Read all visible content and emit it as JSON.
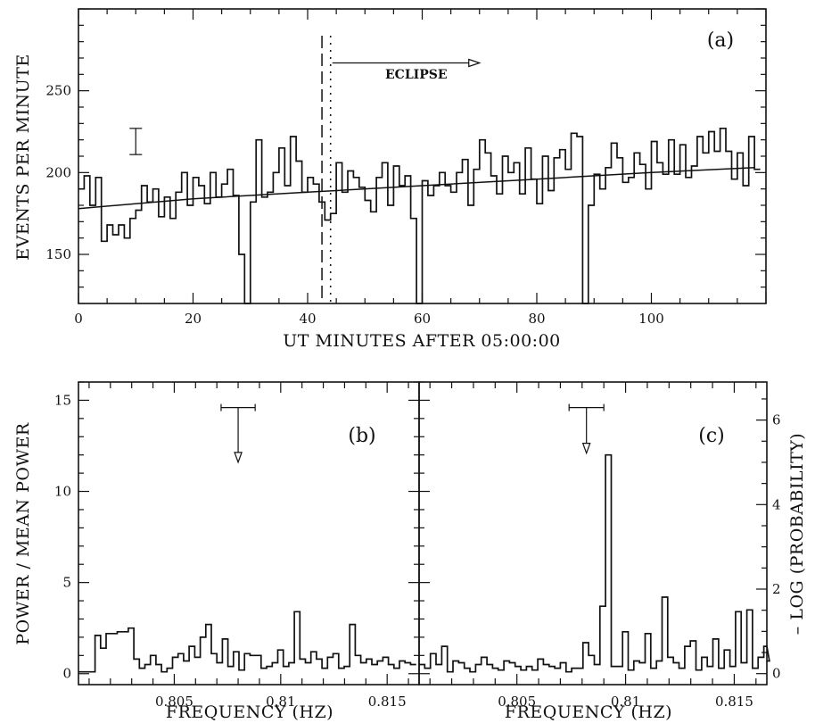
{
  "chart_data": [
    {
      "panel": "(a)",
      "type": "line",
      "xlabel": "UT MINUTES AFTER 05:00:00",
      "ylabel": "EVENTS PER MINUTE",
      "xlim": [
        0,
        120
      ],
      "ylim": [
        120,
        300
      ],
      "xticks": [
        0,
        20,
        40,
        60,
        80,
        100
      ],
      "yticks": [
        150,
        200,
        250
      ],
      "eclipse_label": "ECLIPSE",
      "eclipse_lines_x": [
        42.5,
        44.0
      ],
      "error_bar": {
        "x": 10,
        "y": [
          211,
          227
        ]
      },
      "series": [
        {
          "values": [
            190,
            198,
            180,
            197,
            158,
            168,
            162,
            168,
            160,
            172,
            177,
            192,
            182,
            190,
            173,
            185,
            172,
            188,
            200,
            180,
            197,
            192,
            181,
            200,
            185,
            193,
            202,
            186,
            150,
            120,
            182,
            220,
            185,
            188,
            200,
            215,
            192,
            222,
            207,
            188,
            197,
            193,
            182,
            171,
            175,
            206,
            188,
            201,
            197,
            191,
            183,
            176,
            197,
            206,
            180,
            204,
            192,
            198,
            172,
            120,
            195,
            186,
            192,
            200,
            192,
            188,
            200,
            208,
            180,
            202,
            220,
            212,
            198,
            187,
            210,
            200,
            206,
            187,
            215,
            196,
            181,
            210,
            189,
            209,
            214,
            202,
            224,
            222,
            120,
            180,
            199,
            190,
            203,
            218,
            209,
            194,
            197,
            212,
            205,
            190,
            219,
            206,
            199,
            220,
            199,
            217,
            197,
            204,
            222,
            212,
            225,
            213,
            227,
            213,
            196,
            212,
            192,
            222,
            202
          ]
        },
        {
          "x": [
            0,
            20,
            40,
            60,
            80,
            100,
            118
          ],
          "values": [
            178,
            184,
            188,
            192,
            196,
            200,
            203
          ]
        }
      ]
    },
    {
      "panel": "(b)",
      "type": "line",
      "xlabel": "FREQUENCY (HZ)",
      "ylabel": "POWER / MEAN POWER",
      "xlim": [
        0.8005,
        0.8165
      ],
      "ylim": [
        -0.6,
        16
      ],
      "xticks": [
        0.805,
        0.81,
        0.815
      ],
      "yticks": [
        0,
        5,
        10,
        15
      ],
      "arrow": {
        "x": 0.808,
        "y_top": 14.6,
        "y_bottom": 11.6,
        "bar_half_width": 0.0008
      },
      "series": [
        {
          "x_start": 0.8005,
          "dx": 0.00026,
          "values": [
            0.1,
            0.1,
            0.1,
            2.1,
            1.4,
            2.2,
            2.2,
            2.3,
            2.3,
            2.5,
            0.8,
            0.3,
            0.5,
            1.0,
            0.5,
            0.1,
            0.3,
            0.9,
            1.1,
            0.7,
            1.5,
            0.9,
            2.0,
            2.7,
            1.1,
            0.6,
            1.9,
            0.4,
            1.2,
            0.2,
            1.1,
            1.0,
            1.0,
            0.3,
            0.4,
            0.6,
            1.3,
            0.4,
            0.6,
            3.4,
            0.8,
            0.6,
            1.2,
            0.8,
            0.3,
            0.9,
            1.1,
            0.3,
            0.4,
            2.7,
            1.0,
            0.6,
            0.8,
            0.5,
            0.7,
            0.9,
            0.5,
            0.3,
            0.7,
            0.6,
            0.5
          ]
        }
      ]
    },
    {
      "panel": "(c)",
      "type": "line",
      "xlabel": "FREQUENCY (HZ)",
      "ylabel": "– LOG (PROBABILITY)",
      "xlim": [
        0.8005,
        0.8165
      ],
      "ylim": [
        -0.26,
        6.9
      ],
      "xticks": [
        0.805,
        0.81,
        0.815
      ],
      "yticks": [
        0,
        2,
        4,
        6
      ],
      "arrow": {
        "x": 0.8082,
        "y_top": 14.6,
        "y_bottom": 12.1,
        "bar_half_width": 0.0008
      },
      "series": [
        {
          "x_start": 0.8005,
          "dx": 0.00026,
          "values": [
            0.5,
            0.3,
            1.1,
            0.5,
            1.5,
            0.1,
            0.7,
            0.6,
            0.3,
            0.1,
            0.5,
            0.9,
            0.5,
            0.3,
            0.2,
            0.7,
            0.6,
            0.4,
            0.2,
            0.4,
            0.2,
            0.8,
            0.5,
            0.4,
            0.3,
            0.6,
            0.1,
            0.3,
            0.3,
            1.7,
            1.0,
            0.5,
            3.7,
            12.0,
            0.4,
            0.4,
            2.3,
            0.2,
            0.7,
            0.6,
            2.2,
            0.3,
            0.7,
            4.2,
            0.9,
            0.6,
            0.3,
            1.5,
            1.8,
            0.2,
            0.9,
            0.4,
            1.9,
            0.3,
            1.3,
            0.4,
            3.4,
            0.6,
            3.5,
            0.3,
            0.9,
            1.5,
            0.7
          ]
        }
      ]
    }
  ]
}
